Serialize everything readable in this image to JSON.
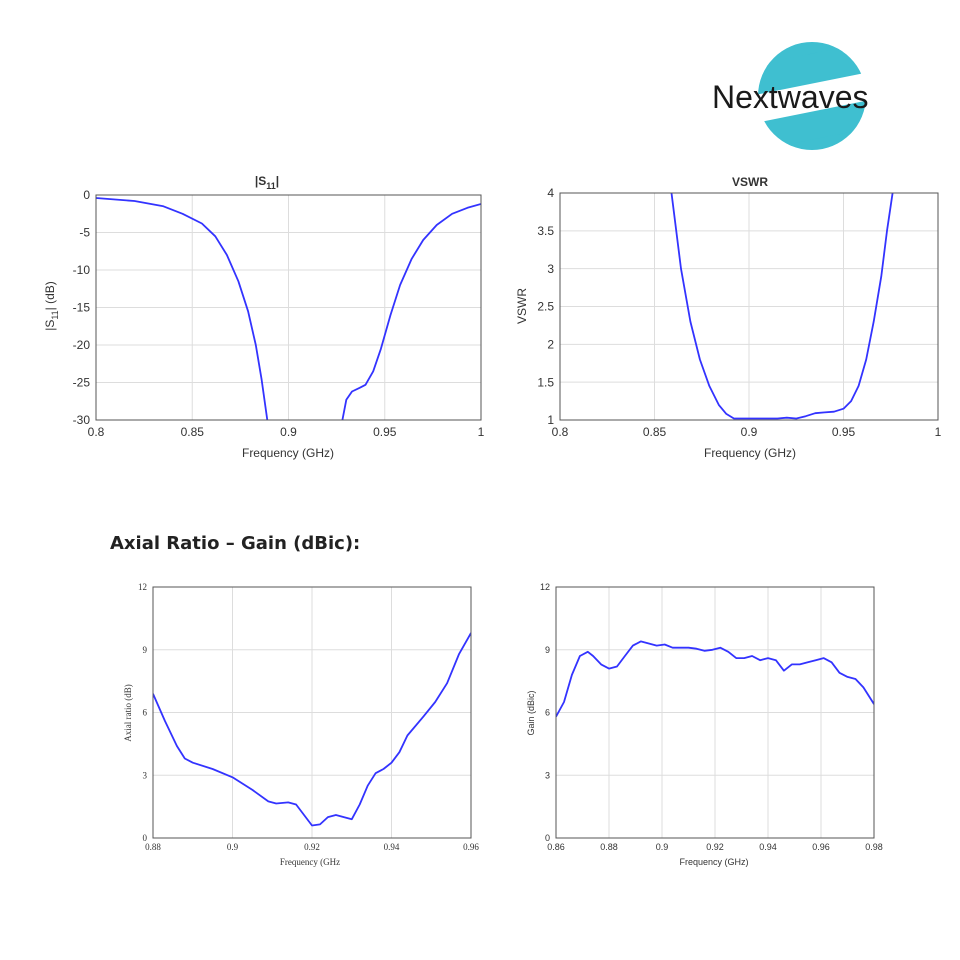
{
  "brand": {
    "name": "Nextwaves",
    "accent": "#3fbfd0",
    "text_color": "#1a1a1a"
  },
  "section_heading": "Axial Ratio – Gain (dBic):",
  "colors": {
    "line": "#3333ff",
    "grid": "#dddddd",
    "axes": "#555555"
  },
  "chart_data": [
    {
      "id": "s11",
      "type": "line",
      "title": "|S11|",
      "xlabel": "Frequency (GHz)",
      "ylabel": "|S11| (dB)",
      "xlim": [
        0.8,
        1.0
      ],
      "ylim": [
        -30,
        0
      ],
      "xticks": [
        0.8,
        0.85,
        0.9,
        0.95,
        1.0
      ],
      "xtick_labels": [
        "0.8",
        "0.85",
        "0.9",
        "0.95",
        "1"
      ],
      "yticks": [
        0,
        -5,
        -10,
        -15,
        -20,
        -25,
        -30
      ],
      "ytick_labels": [
        "0",
        "-5",
        "-10",
        "-15",
        "-20",
        "-25",
        "-30"
      ],
      "grid": true,
      "series": [
        {
          "x": [
            0.8,
            0.82,
            0.835,
            0.845,
            0.855,
            0.862,
            0.868,
            0.874,
            0.879,
            0.883,
            0.886,
            0.889
          ],
          "y": [
            -0.4,
            -0.8,
            -1.5,
            -2.5,
            -3.8,
            -5.5,
            -8,
            -11.5,
            -15.5,
            -20,
            -24.5,
            -30
          ]
        },
        {
          "x": [
            0.928,
            0.93,
            0.933,
            0.937,
            0.94,
            0.944,
            0.948,
            0.953,
            0.958,
            0.964,
            0.97,
            0.977,
            0.985,
            0.993,
            1.0
          ],
          "y": [
            -30,
            -27.3,
            -26.2,
            -25.7,
            -25.3,
            -23.5,
            -20.5,
            -16,
            -12,
            -8.5,
            -6,
            -4,
            -2.5,
            -1.7,
            -1.2
          ]
        }
      ]
    },
    {
      "id": "vswr",
      "type": "line",
      "title": "VSWR",
      "xlabel": "Frequency (GHz)",
      "ylabel": "VSWR",
      "xlim": [
        0.8,
        1.0
      ],
      "ylim": [
        1,
        4
      ],
      "xticks": [
        0.8,
        0.85,
        0.9,
        0.95,
        1.0
      ],
      "xtick_labels": [
        "0.8",
        "0.85",
        "0.9",
        "0.95",
        "1"
      ],
      "yticks": [
        1,
        1.5,
        2,
        2.5,
        3,
        3.5,
        4
      ],
      "ytick_labels": [
        "1",
        "1.5",
        "2",
        "2.5",
        "3",
        "3.5",
        "4"
      ],
      "grid": true,
      "series": [
        {
          "x": [
            0.859,
            0.864,
            0.869,
            0.874,
            0.879,
            0.884,
            0.888,
            0.892,
            0.9,
            0.91,
            0.915,
            0.92,
            0.925,
            0.93,
            0.935,
            0.94,
            0.945,
            0.95,
            0.954,
            0.958,
            0.962,
            0.966,
            0.97,
            0.973,
            0.976
          ],
          "y": [
            4,
            3.0,
            2.3,
            1.8,
            1.45,
            1.2,
            1.08,
            1.02,
            1.02,
            1.02,
            1.02,
            1.03,
            1.02,
            1.05,
            1.09,
            1.1,
            1.11,
            1.15,
            1.25,
            1.45,
            1.8,
            2.3,
            2.9,
            3.5,
            4
          ]
        }
      ]
    },
    {
      "id": "axial-ratio",
      "type": "line",
      "title": "",
      "xlabel": "Frequency (GHz",
      "ylabel": "Axial ratio (dB)",
      "xlim": [
        0.88,
        0.96
      ],
      "ylim": [
        0,
        12
      ],
      "xticks": [
        0.88,
        0.9,
        0.92,
        0.94,
        0.96
      ],
      "xtick_labels": [
        "0.88",
        "0.9",
        "0.92",
        "0.94",
        "0.96"
      ],
      "yticks": [
        0,
        3,
        6,
        9,
        12
      ],
      "ytick_labels": [
        "0",
        "3",
        "6",
        "9",
        "12"
      ],
      "grid": true,
      "series": [
        {
          "x": [
            0.88,
            0.883,
            0.886,
            0.888,
            0.89,
            0.895,
            0.9,
            0.905,
            0.909,
            0.911,
            0.914,
            0.916,
            0.92,
            0.922,
            0.924,
            0.926,
            0.928,
            0.93,
            0.932,
            0.934,
            0.936,
            0.938,
            0.94,
            0.942,
            0.944,
            0.948,
            0.951,
            0.954,
            0.957,
            0.96
          ],
          "y": [
            6.9,
            5.6,
            4.4,
            3.8,
            3.6,
            3.3,
            2.9,
            2.3,
            1.75,
            1.65,
            1.7,
            1.6,
            0.6,
            0.65,
            1.0,
            1.1,
            1.0,
            0.9,
            1.6,
            2.5,
            3.1,
            3.3,
            3.6,
            4.1,
            4.9,
            5.8,
            6.5,
            7.4,
            8.8,
            9.8
          ]
        }
      ]
    },
    {
      "id": "gain",
      "type": "line",
      "title": "",
      "xlabel": "Frequency (GHz)",
      "ylabel": "Gain (dBic)",
      "xlim": [
        0.86,
        0.98
      ],
      "ylim": [
        0,
        12
      ],
      "xticks": [
        0.86,
        0.88,
        0.9,
        0.92,
        0.94,
        0.96,
        0.98
      ],
      "xtick_labels": [
        "0.86",
        "0.88",
        "0.9",
        "0.92",
        "0.94",
        "0.96",
        "0.98"
      ],
      "yticks": [
        0,
        3,
        6,
        9,
        12
      ],
      "ytick_labels": [
        "0",
        "3",
        "6",
        "9",
        "12"
      ],
      "grid": true,
      "series": [
        {
          "x": [
            0.86,
            0.863,
            0.866,
            0.869,
            0.872,
            0.874,
            0.877,
            0.88,
            0.883,
            0.886,
            0.889,
            0.892,
            0.895,
            0.898,
            0.901,
            0.904,
            0.907,
            0.91,
            0.913,
            0.916,
            0.919,
            0.922,
            0.925,
            0.928,
            0.931,
            0.934,
            0.937,
            0.94,
            0.943,
            0.946,
            0.949,
            0.952,
            0.955,
            0.958,
            0.961,
            0.964,
            0.967,
            0.97,
            0.973,
            0.976,
            0.98
          ],
          "y": [
            5.8,
            6.5,
            7.8,
            8.7,
            8.9,
            8.7,
            8.3,
            8.1,
            8.2,
            8.7,
            9.2,
            9.4,
            9.3,
            9.2,
            9.25,
            9.1,
            9.1,
            9.1,
            9.05,
            8.95,
            9.0,
            9.1,
            8.9,
            8.6,
            8.6,
            8.7,
            8.5,
            8.6,
            8.5,
            8.0,
            8.3,
            8.3,
            8.4,
            8.5,
            8.6,
            8.4,
            7.9,
            7.7,
            7.6,
            7.2,
            6.4
          ]
        }
      ]
    }
  ]
}
